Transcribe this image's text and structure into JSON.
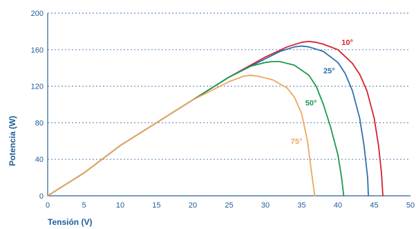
{
  "chart_data": {
    "type": "line",
    "xlabel": "Tensión (V)",
    "ylabel": "Potencia (W)",
    "xlim": [
      0,
      50
    ],
    "ylim": [
      0,
      200
    ],
    "x_ticks": [
      "0",
      "5",
      "10",
      "15",
      "20",
      "25",
      "30",
      "35",
      "40",
      "45",
      "50"
    ],
    "y_ticks": [
      "0",
      "40",
      "80",
      "120",
      "160",
      "200"
    ],
    "grid": "horizontal dashed",
    "series": [
      {
        "name": "10°",
        "color": "#d6202c",
        "points": [
          [
            0,
            0
          ],
          [
            5,
            25
          ],
          [
            10,
            55
          ],
          [
            15,
            80
          ],
          [
            20,
            105
          ],
          [
            25,
            130
          ],
          [
            30,
            152
          ],
          [
            33,
            163
          ],
          [
            35,
            168
          ],
          [
            36,
            169
          ],
          [
            37,
            168
          ],
          [
            38,
            166
          ],
          [
            40,
            160
          ],
          [
            42,
            145
          ],
          [
            43,
            133
          ],
          [
            44,
            115
          ],
          [
            45,
            85
          ],
          [
            45.6,
            55
          ],
          [
            46,
            25
          ],
          [
            46.2,
            0
          ]
        ]
      },
      {
        "name": "25°",
        "color": "#2d6fb0",
        "points": [
          [
            0,
            0
          ],
          [
            5,
            25
          ],
          [
            10,
            55
          ],
          [
            15,
            80
          ],
          [
            20,
            105
          ],
          [
            25,
            130
          ],
          [
            30,
            150
          ],
          [
            32,
            158
          ],
          [
            34,
            163
          ],
          [
            35,
            164
          ],
          [
            36,
            163
          ],
          [
            38,
            158
          ],
          [
            40,
            146
          ],
          [
            41,
            134
          ],
          [
            42,
            115
          ],
          [
            43,
            85
          ],
          [
            43.6,
            55
          ],
          [
            44.1,
            20
          ],
          [
            44.2,
            0
          ]
        ]
      },
      {
        "name": "50°",
        "color": "#1a9a4a",
        "points": [
          [
            0,
            0
          ],
          [
            5,
            25
          ],
          [
            10,
            55
          ],
          [
            15,
            80
          ],
          [
            20,
            105
          ],
          [
            25,
            130
          ],
          [
            28,
            142
          ],
          [
            30,
            146
          ],
          [
            31,
            147
          ],
          [
            32,
            147
          ],
          [
            34,
            143
          ],
          [
            36,
            132
          ],
          [
            37,
            120
          ],
          [
            38,
            100
          ],
          [
            39,
            75
          ],
          [
            40,
            45
          ],
          [
            40.5,
            20
          ],
          [
            40.8,
            0
          ]
        ]
      },
      {
        "name": "75°",
        "color": "#eea65c",
        "points": [
          [
            0,
            0
          ],
          [
            5,
            25
          ],
          [
            10,
            55
          ],
          [
            15,
            80
          ],
          [
            20,
            105
          ],
          [
            25,
            125
          ],
          [
            27,
            131
          ],
          [
            28,
            132
          ],
          [
            29,
            131
          ],
          [
            31,
            127
          ],
          [
            33,
            118
          ],
          [
            34,
            108
          ],
          [
            35,
            90
          ],
          [
            35.8,
            60
          ],
          [
            36.3,
            30
          ],
          [
            36.8,
            0
          ]
        ]
      }
    ],
    "labels": [
      {
        "series": "10°",
        "text": "10°",
        "x": 40.5,
        "y": 165
      },
      {
        "series": "25°",
        "text": "25°",
        "x": 38.0,
        "y": 134
      },
      {
        "series": "50°",
        "text": "50°",
        "x": 35.5,
        "y": 99
      },
      {
        "series": "75°",
        "text": "75°",
        "x": 33.5,
        "y": 57
      }
    ]
  }
}
